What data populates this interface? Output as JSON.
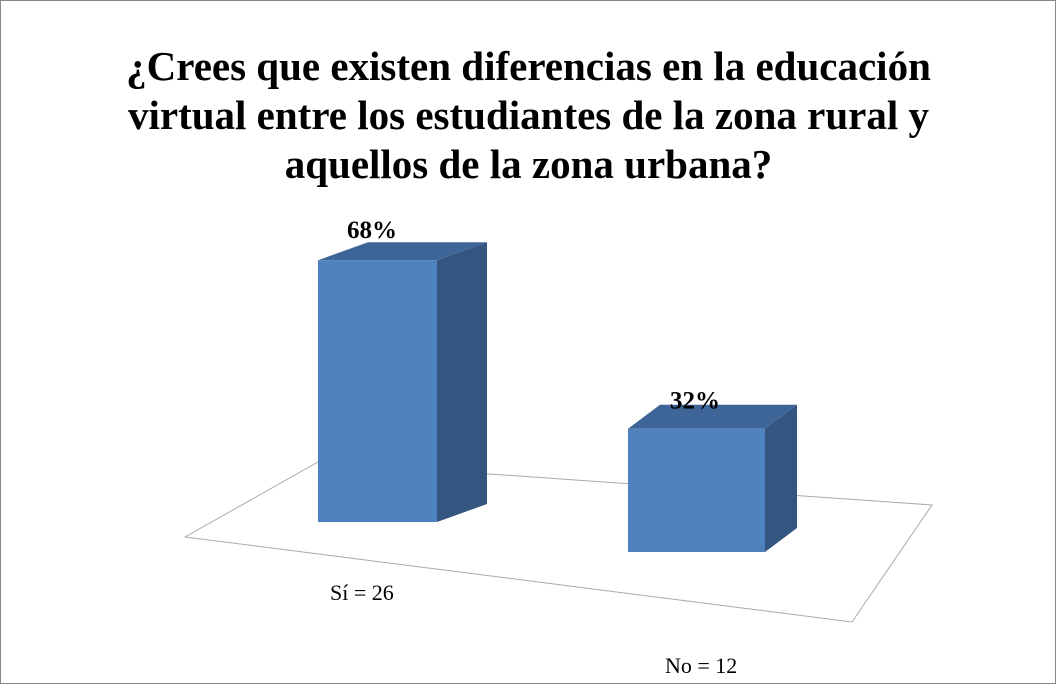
{
  "chart_data": {
    "type": "bar3d",
    "title": "¿Crees que existen diferencias en la educación virtual entre los estudiantes de la zona rural y aquellos de la zona urbana?",
    "categories": [
      "Sí = 26",
      "No = 12"
    ],
    "values": [
      68,
      32
    ],
    "value_labels": [
      "68%",
      "32%"
    ],
    "color": "#4f81bd"
  }
}
